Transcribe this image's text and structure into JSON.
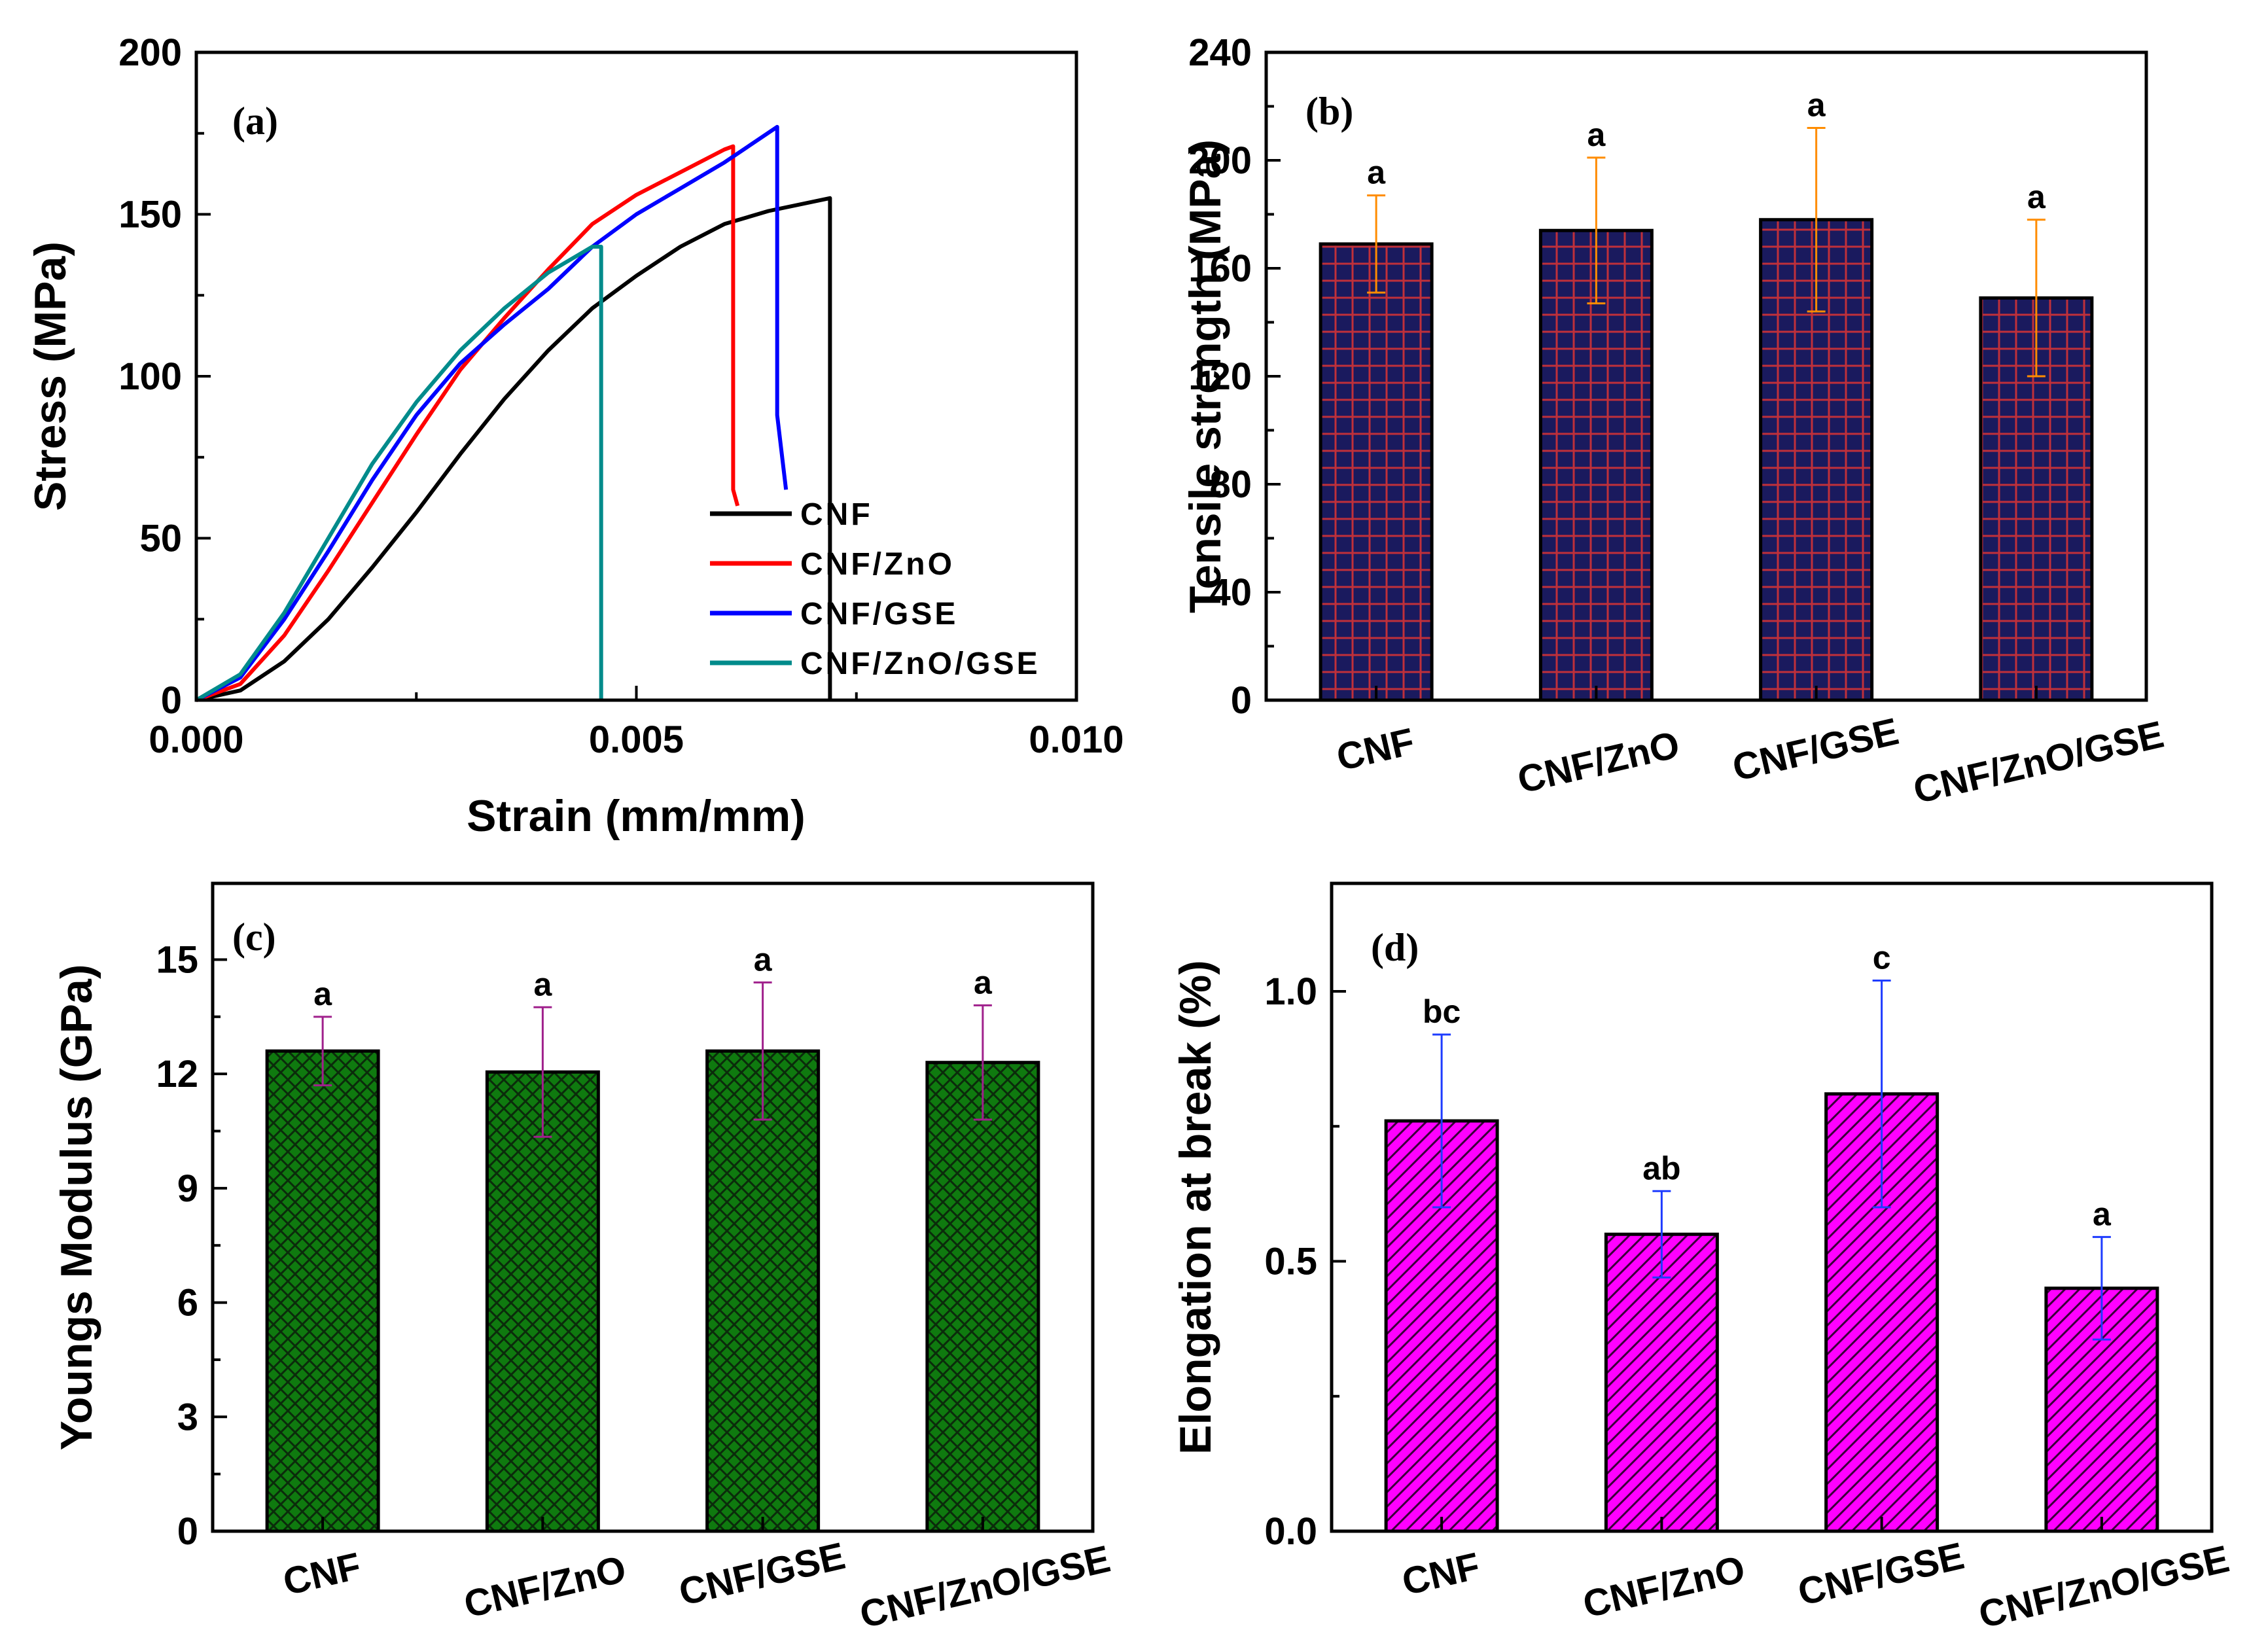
{
  "chart_data": [
    {
      "panel": "(a)",
      "type": "line",
      "title": "",
      "xlabel": "Strain (mm/mm)",
      "ylabel": "Stress (MPa)",
      "xlim": [
        0,
        0.01
      ],
      "ylim": [
        0,
        200
      ],
      "xticks": [
        0,
        0.005,
        0.01
      ],
      "xtick_labels": [
        "0.000",
        "0.005",
        "0.010"
      ],
      "yticks": [
        0,
        50,
        100,
        150,
        200
      ],
      "ytick_labels": [
        "0",
        "50",
        "100",
        "150",
        "200"
      ],
      "legend_position": "bottom-right",
      "series": [
        {
          "name": "CNF",
          "color": "#000000",
          "points": [
            [
              0,
              0
            ],
            [
              0.0005,
              3
            ],
            [
              0.001,
              12
            ],
            [
              0.0015,
              25
            ],
            [
              0.002,
              41
            ],
            [
              0.0025,
              58
            ],
            [
              0.003,
              76
            ],
            [
              0.0035,
              93
            ],
            [
              0.004,
              108
            ],
            [
              0.0045,
              121
            ],
            [
              0.005,
              131
            ],
            [
              0.0055,
              140
            ],
            [
              0.006,
              147
            ],
            [
              0.0065,
              151
            ],
            [
              0.0072,
              155
            ],
            [
              0.0072,
              0
            ]
          ]
        },
        {
          "name": "CNF/ZnO",
          "color": "#ff0000",
          "points": [
            [
              0,
              0
            ],
            [
              0.0005,
              5
            ],
            [
              0.001,
              20
            ],
            [
              0.0015,
              40
            ],
            [
              0.002,
              61
            ],
            [
              0.0025,
              82
            ],
            [
              0.003,
              102
            ],
            [
              0.0035,
              118
            ],
            [
              0.004,
              133
            ],
            [
              0.0045,
              147
            ],
            [
              0.005,
              156
            ],
            [
              0.0055,
              163
            ],
            [
              0.006,
              170
            ],
            [
              0.0061,
              171
            ],
            [
              0.0061,
              65
            ],
            [
              0.00615,
              60
            ]
          ]
        },
        {
          "name": "CNF/GSE",
          "color": "#0000ff",
          "points": [
            [
              0,
              0
            ],
            [
              0.0005,
              7
            ],
            [
              0.001,
              25
            ],
            [
              0.0015,
              46
            ],
            [
              0.002,
              68
            ],
            [
              0.0025,
              88
            ],
            [
              0.003,
              104
            ],
            [
              0.0035,
              116
            ],
            [
              0.004,
              127
            ],
            [
              0.0045,
              140
            ],
            [
              0.005,
              150
            ],
            [
              0.0055,
              158
            ],
            [
              0.006,
              166
            ],
            [
              0.0066,
              177
            ],
            [
              0.0066,
              88
            ],
            [
              0.0067,
              65
            ]
          ]
        },
        {
          "name": "CNF/ZnO/GSE",
          "color": "#008b8b",
          "points": [
            [
              0,
              0
            ],
            [
              0.0005,
              8
            ],
            [
              0.001,
              27
            ],
            [
              0.0015,
              50
            ],
            [
              0.002,
              73
            ],
            [
              0.0025,
              92
            ],
            [
              0.003,
              108
            ],
            [
              0.0035,
              121
            ],
            [
              0.004,
              132
            ],
            [
              0.0045,
              140
            ],
            [
              0.0046,
              140
            ],
            [
              0.0046,
              0
            ]
          ]
        }
      ]
    },
    {
      "panel": "(b)",
      "type": "bar",
      "categories": [
        "CNF",
        "CNF/ZnO",
        "CNF/GSE",
        "CNF/ZnO/GSE"
      ],
      "values": [
        169,
        174,
        178,
        149
      ],
      "errors": [
        18,
        27,
        34,
        29
      ],
      "labels": [
        "a",
        "a",
        "a",
        "a"
      ],
      "ylabel": "Tensile strength (MPa)",
      "xlabel": "",
      "ylim": [
        0,
        240
      ],
      "yticks": [
        0,
        40,
        80,
        120,
        160,
        200,
        240
      ],
      "ytick_labels": [
        "0",
        "40",
        "80",
        "120",
        "160",
        "200",
        "240"
      ],
      "bar_color": "#1a1a5e",
      "pattern_color": "#c0303a",
      "error_color": "#ff8c00"
    },
    {
      "panel": "(c)",
      "type": "bar",
      "categories": [
        "CNF",
        "CNF/ZnO",
        "CNF/GSE",
        "CNF/ZnO/GSE"
      ],
      "values": [
        12.6,
        12.05,
        12.6,
        12.3
      ],
      "errors": [
        0.9,
        1.7,
        1.8,
        1.5
      ],
      "labels": [
        "a",
        "a",
        "a",
        "a"
      ],
      "ylabel": "Youngs Modulus (GPa)",
      "xlabel": "",
      "ylim": [
        0,
        17
      ],
      "yticks": [
        0,
        3,
        6,
        9,
        12,
        15
      ],
      "ytick_labels": [
        "0",
        "3",
        "6",
        "9",
        "12",
        "15"
      ],
      "bar_color": "#0f7a0f",
      "pattern_color": "#0b2b0b",
      "error_color": "#a0208c"
    },
    {
      "panel": "(d)",
      "type": "bar",
      "categories": [
        "CNF",
        "CNF/ZnO",
        "CNF/GSE",
        "CNF/ZnO/GSE"
      ],
      "values": [
        0.76,
        0.55,
        0.81,
        0.45
      ],
      "errors": [
        0.16,
        0.08,
        0.21,
        0.095
      ],
      "labels": [
        "bc",
        "ab",
        "c",
        "a"
      ],
      "ylabel": "Elongation at break (%)",
      "xlabel": "",
      "ylim": [
        0,
        1.2
      ],
      "yticks": [
        0,
        0.5,
        1.0
      ],
      "ytick_labels": [
        "0.0",
        "0.5",
        "1.0"
      ],
      "bar_color": "#ff00ff",
      "pattern_color": "#3a003a",
      "error_color": "#1e3cff"
    }
  ]
}
